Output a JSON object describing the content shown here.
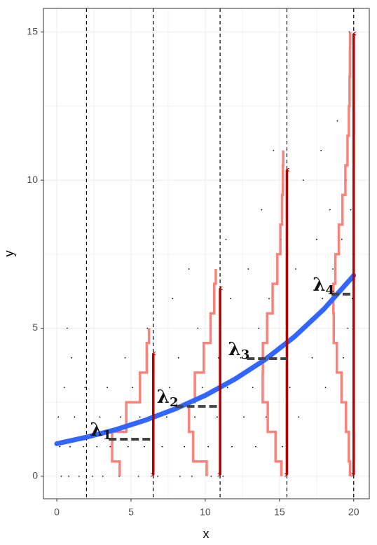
{
  "chart_data": {
    "type": "poisson-regression",
    "xlabel": "x",
    "ylabel": "y",
    "xlim": [
      -0.9,
      21.05
    ],
    "ylim": [
      -0.76,
      15.8
    ],
    "xticks": [
      0,
      5,
      10,
      15,
      20
    ],
    "yticks": [
      0,
      5,
      10,
      15
    ],
    "grid": true,
    "vlines": [
      2,
      6.5,
      11,
      15.5,
      20
    ],
    "curve": {
      "color": "#3366ff",
      "x": [
        0,
        2,
        4,
        6,
        8,
        10,
        12,
        14,
        16,
        18,
        20
      ],
      "y": [
        1.1,
        1.32,
        1.58,
        1.9,
        2.28,
        2.73,
        3.28,
        3.93,
        4.71,
        5.65,
        6.78
      ]
    },
    "dist_color": "#f8766d",
    "arrow_color": "#b30000",
    "groups": [
      {
        "label": "λ",
        "sub": "1",
        "x": 6.5,
        "lambda": 1.25,
        "dash_from": 3.5,
        "arrow_top": 4.2,
        "dist_top": 5
      },
      {
        "label": "λ",
        "sub": "2",
        "x": 11,
        "lambda": 2.36,
        "dash_from": 8,
        "arrow_top": 6.4,
        "dist_top": 7
      },
      {
        "label": "λ",
        "sub": "3",
        "x": 15.5,
        "lambda": 3.97,
        "dash_from": 12.8,
        "arrow_top": 10.4,
        "dist_top": 11
      },
      {
        "label": "λ",
        "sub": "4",
        "x": 20,
        "lambda": 6.15,
        "dash_from": 18.5,
        "arrow_top": 15,
        "dist_top": 15
      }
    ],
    "points": [
      [
        0.3,
        0
      ],
      [
        0.8,
        0
      ],
      [
        1.5,
        0
      ],
      [
        2.4,
        0
      ],
      [
        3.1,
        0
      ],
      [
        4.2,
        0
      ],
      [
        5.5,
        0
      ],
      [
        6.8,
        0
      ],
      [
        8.3,
        0
      ],
      [
        9.1,
        0
      ],
      [
        10.4,
        0
      ],
      [
        11.2,
        0
      ],
      [
        0.2,
        1
      ],
      [
        0.9,
        1
      ],
      [
        1.8,
        1
      ],
      [
        2.7,
        1
      ],
      [
        3.6,
        1
      ],
      [
        4.8,
        1
      ],
      [
        5.9,
        1
      ],
      [
        7.1,
        1
      ],
      [
        8.6,
        1
      ],
      [
        10.2,
        1
      ],
      [
        11.8,
        1
      ],
      [
        13.4,
        1
      ],
      [
        15.2,
        1
      ],
      [
        0.1,
        2
      ],
      [
        1.2,
        2
      ],
      [
        2.9,
        2
      ],
      [
        4.3,
        2
      ],
      [
        5.6,
        2
      ],
      [
        7.4,
        2
      ],
      [
        9.3,
        2
      ],
      [
        10.8,
        2
      ],
      [
        12.6,
        2
      ],
      [
        14.1,
        2
      ],
      [
        16.3,
        2
      ],
      [
        0.5,
        3
      ],
      [
        1.9,
        3
      ],
      [
        3.4,
        3
      ],
      [
        5.1,
        3
      ],
      [
        7.6,
        3
      ],
      [
        9.8,
        3
      ],
      [
        11.5,
        3
      ],
      [
        13.2,
        3
      ],
      [
        15.7,
        3
      ],
      [
        18.1,
        3
      ],
      [
        1,
        4
      ],
      [
        4.6,
        4
      ],
      [
        8.2,
        4
      ],
      [
        10.9,
        4
      ],
      [
        12.4,
        4
      ],
      [
        14.8,
        4
      ],
      [
        17.2,
        4
      ],
      [
        19.3,
        4
      ],
      [
        0.7,
        5
      ],
      [
        6.1,
        5
      ],
      [
        9.5,
        5
      ],
      [
        13.6,
        5
      ],
      [
        16.8,
        5
      ],
      [
        19.6,
        5
      ],
      [
        7.8,
        6
      ],
      [
        11.7,
        6
      ],
      [
        14.3,
        6
      ],
      [
        17.9,
        6
      ],
      [
        19.9,
        6
      ],
      [
        8.9,
        7
      ],
      [
        12.9,
        7
      ],
      [
        16.1,
        7
      ],
      [
        18.6,
        7
      ],
      [
        11.4,
        8
      ],
      [
        15.1,
        8
      ],
      [
        17.5,
        8
      ],
      [
        19.2,
        8
      ],
      [
        13.8,
        9
      ],
      [
        18.4,
        9
      ],
      [
        19.8,
        9
      ],
      [
        16.6,
        10
      ],
      [
        19.5,
        10
      ],
      [
        14.6,
        11
      ],
      [
        17.8,
        11
      ],
      [
        18.9,
        12
      ],
      [
        19.7,
        15
      ]
    ]
  }
}
